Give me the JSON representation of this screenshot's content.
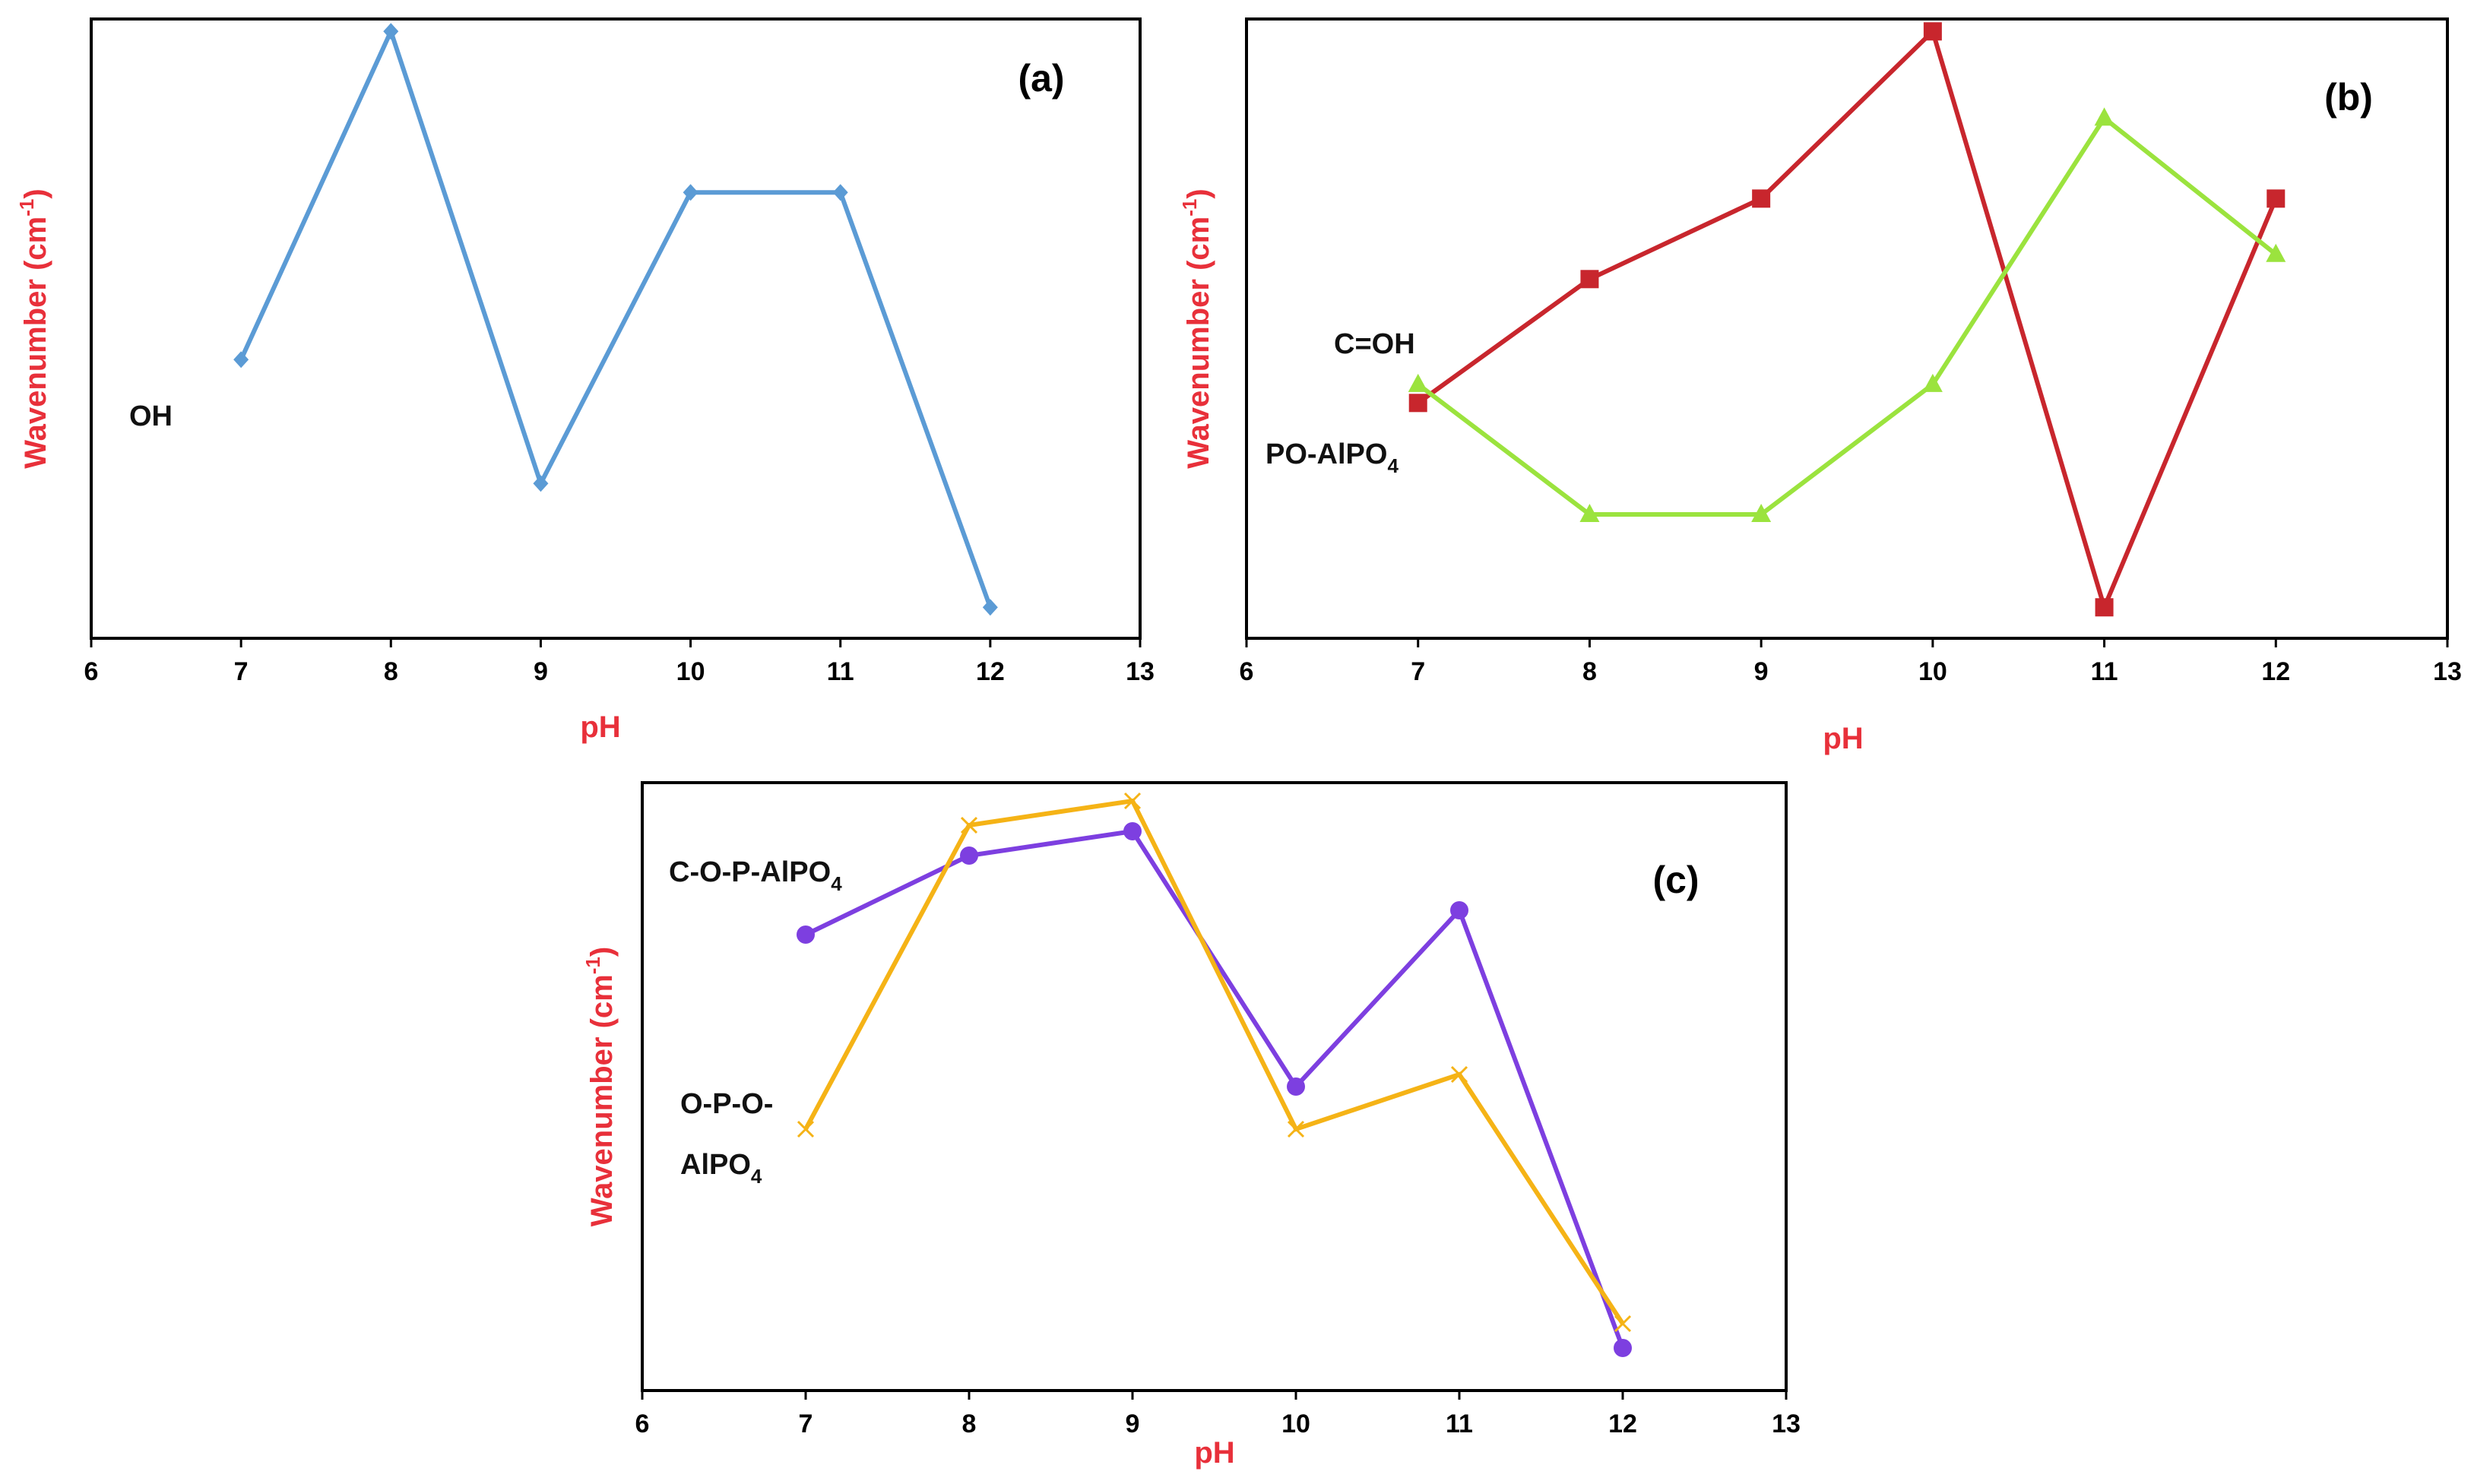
{
  "colors": {
    "axis_label": "#e8303a",
    "frame": "#000000"
  },
  "chart_data": [
    {
      "id": "a",
      "type": "line",
      "panel_label": "(a)",
      "xlabel": "pH",
      "ylabel": "Wavenumber (cm",
      "ylabel_sup": "-1",
      "ylabel_close": ")",
      "xlim": [
        6,
        13
      ],
      "ylim": [
        0,
        100
      ],
      "xticks": [
        "6",
        "7",
        "8",
        "9",
        "10",
        "11",
        "12",
        "13"
      ],
      "series": [
        {
          "name": "OH",
          "color": "#5b9bd5",
          "marker": "diamond",
          "x": [
            7,
            8,
            9,
            10,
            11,
            12
          ],
          "values": [
            45,
            98,
            25,
            72,
            72,
            5
          ]
        }
      ],
      "annotations": [
        {
          "id": "oh",
          "text": "OH",
          "sub": ""
        }
      ]
    },
    {
      "id": "b",
      "type": "line",
      "panel_label": "(b)",
      "xlabel": "pH",
      "ylabel": "Wavenumber (cm",
      "ylabel_sup": "-1",
      "ylabel_close": ")",
      "xlim": [
        6,
        13
      ],
      "ylim": [
        0,
        100
      ],
      "xticks": [
        "6",
        "7",
        "8",
        "9",
        "10",
        "11",
        "12",
        "13"
      ],
      "series": [
        {
          "name": "C=OH",
          "color": "#c8262d",
          "marker": "square",
          "x": [
            7,
            8,
            9,
            10,
            11,
            12
          ],
          "values": [
            38,
            58,
            71,
            98,
            5,
            71
          ]
        },
        {
          "name": "PO-AlPO4",
          "color": "#9be33e",
          "marker": "triangle",
          "x": [
            7,
            8,
            9,
            10,
            11,
            12
          ],
          "values": [
            41,
            20,
            20,
            41,
            84,
            62
          ]
        }
      ],
      "annotations": [
        {
          "id": "coh",
          "text": "C=OH",
          "sub": ""
        },
        {
          "id": "poalpo4",
          "text": "PO-AlPO",
          "sub": "4"
        }
      ]
    },
    {
      "id": "c",
      "type": "line",
      "panel_label": "(c)",
      "xlabel": "pH",
      "ylabel": "Wavenumber (cm",
      "ylabel_sup": "-1",
      "ylabel_close": ")",
      "xlim": [
        6,
        13
      ],
      "ylim": [
        0,
        100
      ],
      "xticks": [
        "6",
        "7",
        "8",
        "9",
        "10",
        "11",
        "12",
        "13"
      ],
      "series": [
        {
          "name": "C-O-P-AlPO4",
          "color": "#7d3fe0",
          "marker": "circle",
          "x": [
            7,
            8,
            9,
            10,
            11,
            12
          ],
          "values": [
            75,
            88,
            92,
            50,
            79,
            7
          ]
        },
        {
          "name": "O-P-O-AlPO4",
          "color": "#f5b316",
          "marker": "x",
          "x": [
            7,
            8,
            9,
            10,
            11,
            12
          ],
          "values": [
            43,
            93,
            97,
            43,
            52,
            11
          ]
        }
      ],
      "annotations": [
        {
          "id": "copalpo4",
          "text": "C-O-P-AlPO",
          "sub": "4"
        },
        {
          "id": "opo1",
          "text": "O-P-O-",
          "sub": ""
        },
        {
          "id": "opo2",
          "text": "AlPO",
          "sub": "4"
        }
      ]
    }
  ]
}
